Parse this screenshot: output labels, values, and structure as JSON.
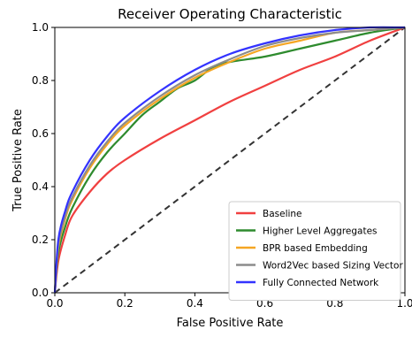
{
  "chart_data": {
    "type": "line",
    "title": "Receiver Operating Characteristic",
    "xlabel": "False Positive Rate",
    "ylabel": "True Positive Rate",
    "xlim": [
      0.0,
      1.0
    ],
    "ylim": [
      0.0,
      1.0
    ],
    "x_ticks": [
      0.0,
      0.2,
      0.4,
      0.6,
      0.8,
      1.0
    ],
    "y_ticks": [
      0.0,
      0.2,
      0.4,
      0.6,
      0.8,
      1.0
    ],
    "x_tick_labels": [
      "0.0",
      "0.2",
      "0.4",
      "0.6",
      "0.8",
      "1.0"
    ],
    "y_tick_labels": [
      "0.0",
      "0.2",
      "0.4",
      "0.6",
      "0.8",
      "1.0"
    ],
    "grid": false,
    "legend_position": "lower-right",
    "diagonal": {
      "style": "dashed",
      "color": "#333333",
      "points": [
        [
          0,
          0
        ],
        [
          1,
          1
        ]
      ]
    },
    "series": [
      {
        "name": "Baseline",
        "color": "#f04040",
        "points": [
          [
            0,
            0
          ],
          [
            0.01,
            0.12
          ],
          [
            0.03,
            0.22
          ],
          [
            0.05,
            0.29
          ],
          [
            0.1,
            0.38
          ],
          [
            0.15,
            0.45
          ],
          [
            0.2,
            0.5
          ],
          [
            0.3,
            0.58
          ],
          [
            0.4,
            0.65
          ],
          [
            0.5,
            0.72
          ],
          [
            0.6,
            0.78
          ],
          [
            0.7,
            0.84
          ],
          [
            0.8,
            0.89
          ],
          [
            0.9,
            0.95
          ],
          [
            1.0,
            1.0
          ]
        ]
      },
      {
        "name": "Higher Level Aggregates",
        "color": "#2e8b2e",
        "points": [
          [
            0,
            0
          ],
          [
            0.01,
            0.15
          ],
          [
            0.03,
            0.25
          ],
          [
            0.05,
            0.32
          ],
          [
            0.1,
            0.44
          ],
          [
            0.15,
            0.53
          ],
          [
            0.2,
            0.6
          ],
          [
            0.25,
            0.67
          ],
          [
            0.3,
            0.72
          ],
          [
            0.35,
            0.77
          ],
          [
            0.4,
            0.8
          ],
          [
            0.47,
            0.86
          ],
          [
            0.6,
            0.89
          ],
          [
            0.7,
            0.92
          ],
          [
            0.8,
            0.95
          ],
          [
            0.9,
            0.98
          ],
          [
            1.0,
            1.0
          ]
        ]
      },
      {
        "name": "BPR based Embedding",
        "color": "#f5a623",
        "points": [
          [
            0,
            0
          ],
          [
            0.01,
            0.17
          ],
          [
            0.03,
            0.28
          ],
          [
            0.05,
            0.35
          ],
          [
            0.1,
            0.47
          ],
          [
            0.15,
            0.56
          ],
          [
            0.2,
            0.63
          ],
          [
            0.3,
            0.73
          ],
          [
            0.4,
            0.81
          ],
          [
            0.5,
            0.87
          ],
          [
            0.6,
            0.92
          ],
          [
            0.7,
            0.95
          ],
          [
            0.8,
            0.98
          ],
          [
            0.9,
            0.99
          ],
          [
            1.0,
            1.0
          ]
        ]
      },
      {
        "name": "Word2Vec based Sizing Vector",
        "color": "#8c8c8c",
        "points": [
          [
            0,
            0
          ],
          [
            0.01,
            0.18
          ],
          [
            0.03,
            0.29
          ],
          [
            0.05,
            0.36
          ],
          [
            0.1,
            0.48
          ],
          [
            0.15,
            0.57
          ],
          [
            0.2,
            0.64
          ],
          [
            0.3,
            0.74
          ],
          [
            0.4,
            0.82
          ],
          [
            0.5,
            0.88
          ],
          [
            0.6,
            0.93
          ],
          [
            0.7,
            0.96
          ],
          [
            0.8,
            0.98
          ],
          [
            0.9,
            0.99
          ],
          [
            1.0,
            1.0
          ]
        ]
      },
      {
        "name": "Fully Connected Network",
        "color": "#3333ff",
        "points": [
          [
            0,
            0
          ],
          [
            0.01,
            0.2
          ],
          [
            0.03,
            0.31
          ],
          [
            0.05,
            0.38
          ],
          [
            0.1,
            0.5
          ],
          [
            0.15,
            0.59
          ],
          [
            0.2,
            0.66
          ],
          [
            0.3,
            0.76
          ],
          [
            0.4,
            0.84
          ],
          [
            0.5,
            0.9
          ],
          [
            0.6,
            0.94
          ],
          [
            0.7,
            0.97
          ],
          [
            0.8,
            0.99
          ],
          [
            0.9,
            1.0
          ],
          [
            1.0,
            1.0
          ]
        ]
      }
    ]
  }
}
